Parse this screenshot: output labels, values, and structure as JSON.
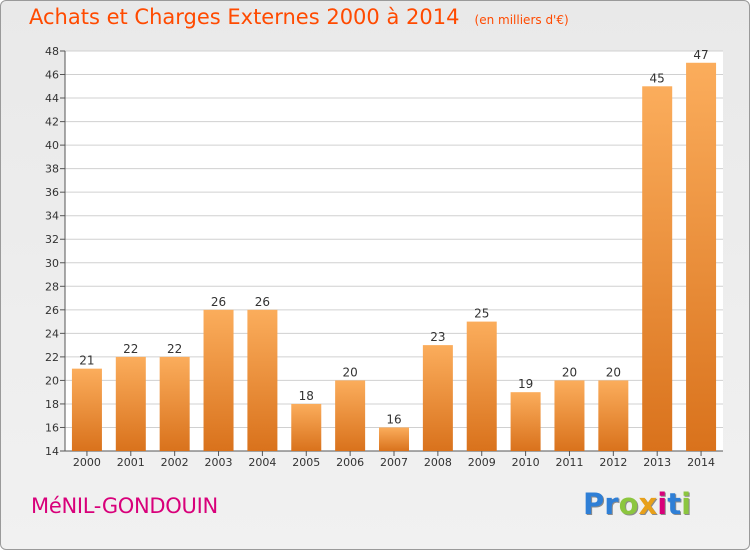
{
  "header": {
    "title": "Achats et Charges Externes 2000 à 2014",
    "subtitle": "(en milliers d'€)"
  },
  "footer": {
    "town": "MéNIL-GONDOUIN",
    "logo": {
      "text": "Proxiti",
      "letters": [
        {
          "ch": "P",
          "color": "#2f7fd6"
        },
        {
          "ch": "r",
          "color": "#2f7fd6"
        },
        {
          "ch": "o",
          "color": "#8cc63f"
        },
        {
          "ch": "x",
          "color": "#e8a01a"
        },
        {
          "ch": "i",
          "color": "#d8007a"
        },
        {
          "ch": "t",
          "color": "#2f7fd6"
        },
        {
          "ch": "i",
          "color": "#8cc63f"
        }
      ]
    }
  },
  "chart_data": {
    "type": "bar",
    "title": "Achats et Charges Externes 2000 à 2014",
    "subtitle": "(en milliers d'€)",
    "categories": [
      "2000",
      "2001",
      "2002",
      "2003",
      "2004",
      "2005",
      "2006",
      "2007",
      "2008",
      "2009",
      "2010",
      "2011",
      "2012",
      "2013",
      "2014"
    ],
    "values": [
      21,
      22,
      22,
      26,
      26,
      18,
      20,
      16,
      23,
      25,
      19,
      20,
      20,
      45,
      47
    ],
    "ylim": [
      14,
      48
    ],
    "yticks": [
      14,
      16,
      18,
      20,
      22,
      24,
      26,
      28,
      30,
      32,
      34,
      36,
      38,
      40,
      42,
      44,
      46,
      48
    ],
    "grid": true,
    "data_labels": true,
    "colors": {
      "bar_light": "#fbad5c",
      "bar_dark": "#d9721c",
      "title": "#ff4a00",
      "town": "#d8007a"
    }
  }
}
